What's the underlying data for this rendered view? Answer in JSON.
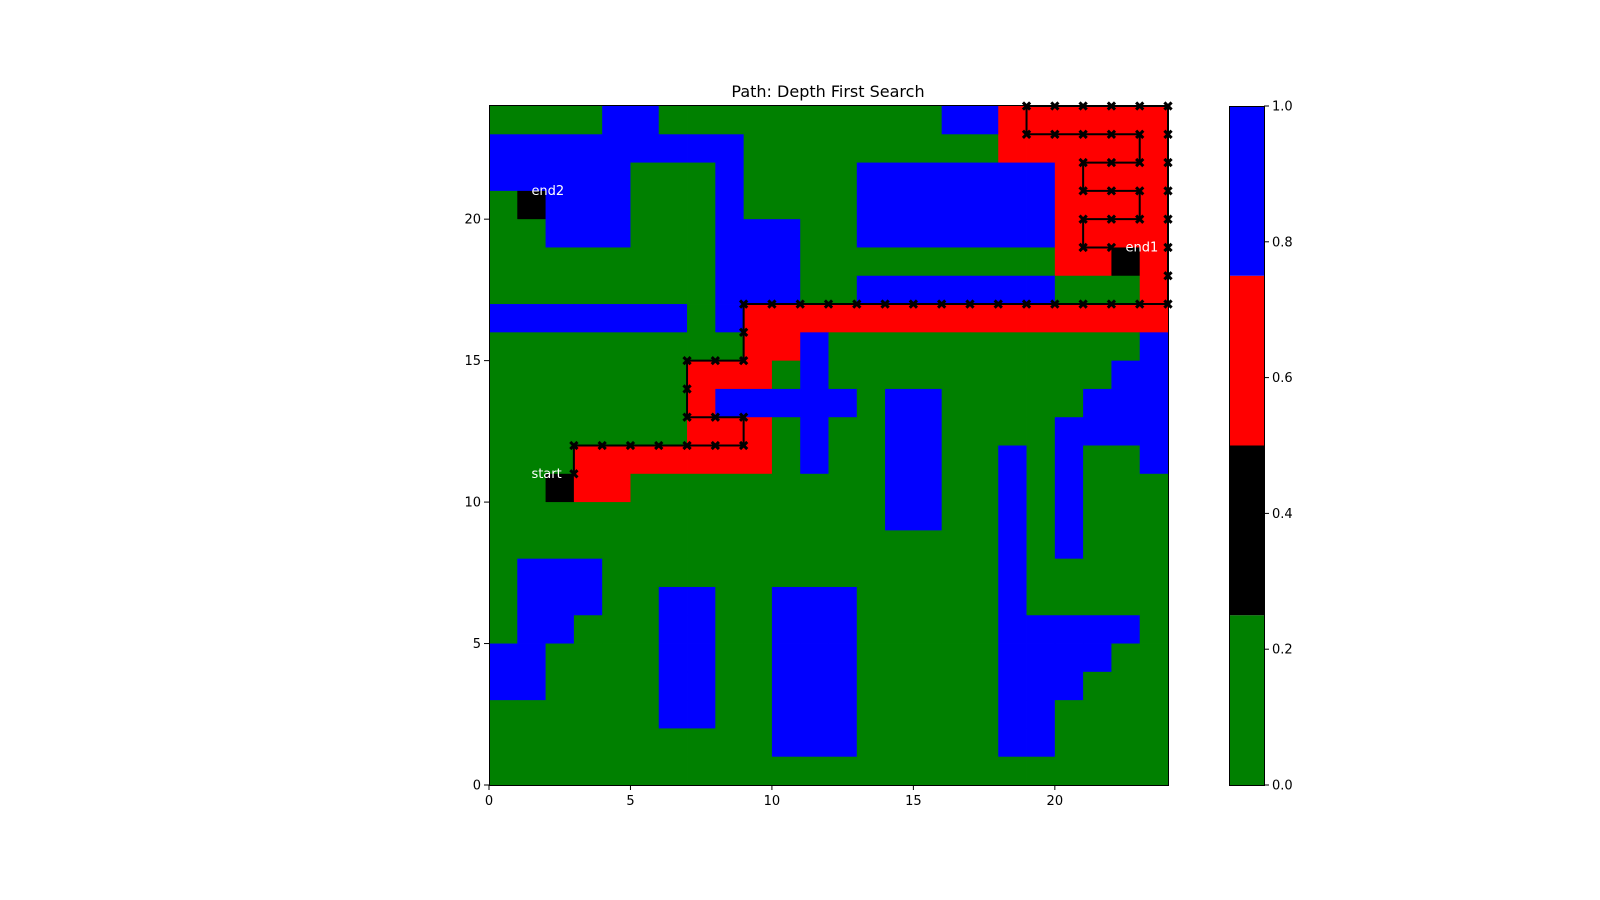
{
  "chart_data": {
    "type": "heatmap",
    "title": "Path: Depth First Search",
    "xlabel": "",
    "ylabel": "",
    "xlim": [
      0,
      24
    ],
    "ylim": [
      0,
      24
    ],
    "xticks": [
      0,
      5,
      10,
      15,
      20
    ],
    "yticks": [
      0,
      5,
      10,
      15,
      20
    ],
    "grid": false,
    "legend": "none",
    "cell_values": {
      "open": 0.125,
      "endpoint": 0.375,
      "path": 0.625,
      "wall": 0.875
    },
    "grid_rows_top_to_bottom": [
      "GGGGBBGGGGGGGGGGBBRRRRRR",
      "BBBBBBBBBGGGGGGGGGRRRRRR",
      "BBBBBGGGBGGGGBBBBBBBRRRR",
      "GEBBBGGGBGGGGBBBBBBBRRRR",
      "GGBBBGGGBBBGGBBBBBBBRRRR",
      "GGGGGGGGBBBGGGGGGGGGRRER",
      "GGGGGGGGBBBGGBBBBBBBGGGR",
      "BBBBBBBGBRRRRRRRRRRRRRRR",
      "GGGGGGGGGRRBGGGGGGGGGGGB",
      "GGGGGGGRRRGBGGGGGGGGGGBB",
      "GGGGGGGRBBBBBGBBGGGGGBBB",
      "GGGGGGGRRRGBGGBBGGGGBBBB",
      "GGGRRRRRRRGBGGBBGGBGBGGB",
      "GGERRGGGGGGGGGBBGGBGBGGG",
      "GGGGGGGGGGGGGGBBGGBGBGGG",
      "GGGGGGGGGGGGGGGGGGBGBGGG",
      "GBBBGGGGGGGGGGGGGGBGGGGG",
      "GBBBGGBBGGBBBGGGGGBGGGGG",
      "GBBGGGBBGGBBBGGGGGBBBBBG",
      "BBGGGGBBGGBBBGGGGGBBBBGG",
      "BBGGGGBBGGBBBGGGGGBBBGGG",
      "GGGGGGBBGGBBBGGGGGBBGGGG",
      "GGGGGGGGGGBBBGGGGGBBGGGG",
      "GGGGGGGGGGGGGGGGGGGGGGGG"
    ],
    "path_points": [
      [
        3,
        11
      ],
      [
        3,
        12
      ],
      [
        4,
        12
      ],
      [
        5,
        12
      ],
      [
        6,
        12
      ],
      [
        7,
        12
      ],
      [
        8,
        12
      ],
      [
        9,
        12
      ],
      [
        9,
        13
      ],
      [
        8,
        13
      ],
      [
        7,
        13
      ],
      [
        7,
        14
      ],
      [
        7,
        15
      ],
      [
        8,
        15
      ],
      [
        9,
        15
      ],
      [
        9,
        16
      ],
      [
        9,
        17
      ],
      [
        10,
        17
      ],
      [
        11,
        17
      ],
      [
        12,
        17
      ],
      [
        13,
        17
      ],
      [
        14,
        17
      ],
      [
        15,
        17
      ],
      [
        16,
        17
      ],
      [
        17,
        17
      ],
      [
        18,
        17
      ],
      [
        19,
        17
      ],
      [
        20,
        17
      ],
      [
        21,
        17
      ],
      [
        22,
        17
      ],
      [
        23,
        17
      ],
      [
        24,
        17
      ],
      [
        24,
        18
      ],
      [
        24,
        19
      ],
      [
        24,
        20
      ],
      [
        24,
        21
      ],
      [
        24,
        22
      ],
      [
        24,
        23
      ],
      [
        24,
        24
      ],
      [
        23,
        24
      ],
      [
        22,
        24
      ],
      [
        21,
        24
      ],
      [
        20,
        24
      ],
      [
        19,
        24
      ],
      [
        19,
        23
      ],
      [
        20,
        23
      ],
      [
        21,
        23
      ],
      [
        22,
        23
      ],
      [
        23,
        23
      ],
      [
        23,
        22
      ],
      [
        22,
        22
      ],
      [
        21,
        22
      ],
      [
        21,
        21
      ],
      [
        22,
        21
      ],
      [
        23,
        21
      ],
      [
        23,
        20
      ],
      [
        22,
        20
      ],
      [
        21,
        20
      ],
      [
        21,
        19
      ],
      [
        22,
        19
      ]
    ],
    "annotations": [
      {
        "text": "start",
        "x": 1.5,
        "y": 11
      },
      {
        "text": "end2",
        "x": 1.5,
        "y": 21
      },
      {
        "text": "end1",
        "x": 22.5,
        "y": 19
      }
    ],
    "colorbar": {
      "range": [
        0,
        1
      ],
      "ticks": [
        "0.0",
        "0.2",
        "0.4",
        "0.6",
        "0.8",
        "1.0"
      ],
      "bands": [
        {
          "from": 0.0,
          "to": 0.25,
          "color": "#008000"
        },
        {
          "from": 0.25,
          "to": 0.5,
          "color": "#000000"
        },
        {
          "from": 0.5,
          "to": 0.75,
          "color": "#ff0000"
        },
        {
          "from": 0.75,
          "to": 1.0,
          "color": "#0000ff"
        }
      ]
    },
    "colors": {
      "G": "#008000",
      "B": "#0000ff",
      "R": "#ff0000",
      "E": "#000000",
      "path_line": "#000000"
    }
  }
}
